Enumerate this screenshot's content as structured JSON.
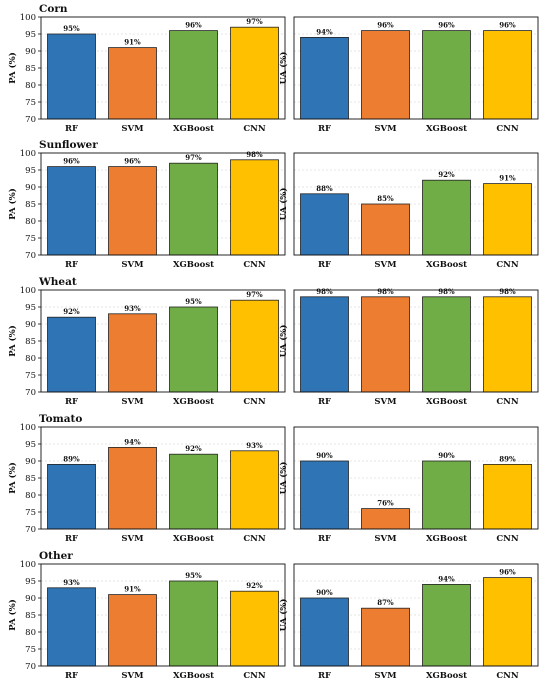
{
  "colors": {
    "RF": "#2f75b5",
    "SVM": "#ed7d31",
    "XGBoost": "#70ad47",
    "CNN": "#ffc000",
    "grid": "#dddddd",
    "edge": "#222222"
  },
  "chart_data": [
    {
      "type": "bar",
      "title": "Corn",
      "ylabel": "PA (%)",
      "categories": [
        "RF",
        "SVM",
        "XGBoost",
        "CNN"
      ],
      "values": [
        95,
        91,
        96,
        97
      ],
      "labels": [
        "95%",
        "91%",
        "96%",
        "97%"
      ],
      "ylim": [
        70,
        100
      ],
      "yticks": [
        70,
        75,
        80,
        85,
        90,
        95,
        100
      ],
      "grid": true
    },
    {
      "type": "bar",
      "title": "",
      "ylabel": "UA (%)",
      "categories": [
        "RF",
        "SVM",
        "XGBoost",
        "CNN"
      ],
      "values": [
        94,
        96,
        96,
        96
      ],
      "labels": [
        "94%",
        "96%",
        "96%",
        "96%"
      ],
      "ylim": [
        70,
        100
      ],
      "yticks": [],
      "grid": true
    },
    {
      "type": "bar",
      "title": "Sunflower",
      "ylabel": "PA (%)",
      "categories": [
        "RF",
        "SVM",
        "XGBoost",
        "CNN"
      ],
      "values": [
        96,
        96,
        97,
        98
      ],
      "labels": [
        "96%",
        "96%",
        "97%",
        "98%"
      ],
      "ylim": [
        70,
        100
      ],
      "yticks": [
        70,
        75,
        80,
        85,
        90,
        95,
        100
      ],
      "grid": true
    },
    {
      "type": "bar",
      "title": "",
      "ylabel": "UA (%)",
      "categories": [
        "RF",
        "SVM",
        "XGBoost",
        "CNN"
      ],
      "values": [
        88,
        85,
        92,
        91
      ],
      "labels": [
        "88%",
        "85%",
        "92%",
        "91%"
      ],
      "ylim": [
        70,
        100
      ],
      "yticks": [],
      "grid": true
    },
    {
      "type": "bar",
      "title": "Wheat",
      "ylabel": "PA (%)",
      "categories": [
        "RF",
        "SVM",
        "XGBoost",
        "CNN"
      ],
      "values": [
        92,
        93,
        95,
        97
      ],
      "labels": [
        "92%",
        "93%",
        "95%",
        "97%"
      ],
      "ylim": [
        70,
        100
      ],
      "yticks": [
        70,
        75,
        80,
        85,
        90,
        95,
        100
      ],
      "grid": true
    },
    {
      "type": "bar",
      "title": "",
      "ylabel": "UA (%)",
      "categories": [
        "RF",
        "SVM",
        "XGBoost",
        "CNN"
      ],
      "values": [
        98,
        98,
        98,
        98
      ],
      "labels": [
        "98%",
        "98%",
        "98%",
        "98%"
      ],
      "ylim": [
        70,
        100
      ],
      "yticks": [],
      "grid": true
    },
    {
      "type": "bar",
      "title": "Tomato",
      "ylabel": "PA (%)",
      "categories": [
        "RF",
        "SVM",
        "XGBoost",
        "CNN"
      ],
      "values": [
        89,
        94,
        92,
        93
      ],
      "labels": [
        "89%",
        "94%",
        "92%",
        "93%"
      ],
      "ylim": [
        70,
        100
      ],
      "yticks": [
        70,
        75,
        80,
        85,
        90,
        95,
        100
      ],
      "grid": true
    },
    {
      "type": "bar",
      "title": "",
      "ylabel": "UA (%)",
      "categories": [
        "RF",
        "SVM",
        "XGBoost",
        "CNN"
      ],
      "values": [
        90,
        76,
        90,
        89
      ],
      "labels": [
        "90%",
        "76%",
        "90%",
        "89%"
      ],
      "ylim": [
        70,
        100
      ],
      "yticks": [],
      "grid": true
    },
    {
      "type": "bar",
      "title": "Other",
      "ylabel": "PA (%)",
      "categories": [
        "RF",
        "SVM",
        "XGBoost",
        "CNN"
      ],
      "values": [
        93,
        91,
        95,
        92
      ],
      "labels": [
        "93%",
        "91%",
        "95%",
        "92%"
      ],
      "ylim": [
        70,
        100
      ],
      "yticks": [
        70,
        75,
        80,
        85,
        90,
        95,
        100
      ],
      "grid": true
    },
    {
      "type": "bar",
      "title": "",
      "ylabel": "UA (%)",
      "categories": [
        "RF",
        "SVM",
        "XGBoost",
        "CNN"
      ],
      "values": [
        90,
        87,
        94,
        96
      ],
      "labels": [
        "90%",
        "87%",
        "94%",
        "96%"
      ],
      "ylim": [
        70,
        100
      ],
      "yticks": [],
      "grid": true
    }
  ]
}
